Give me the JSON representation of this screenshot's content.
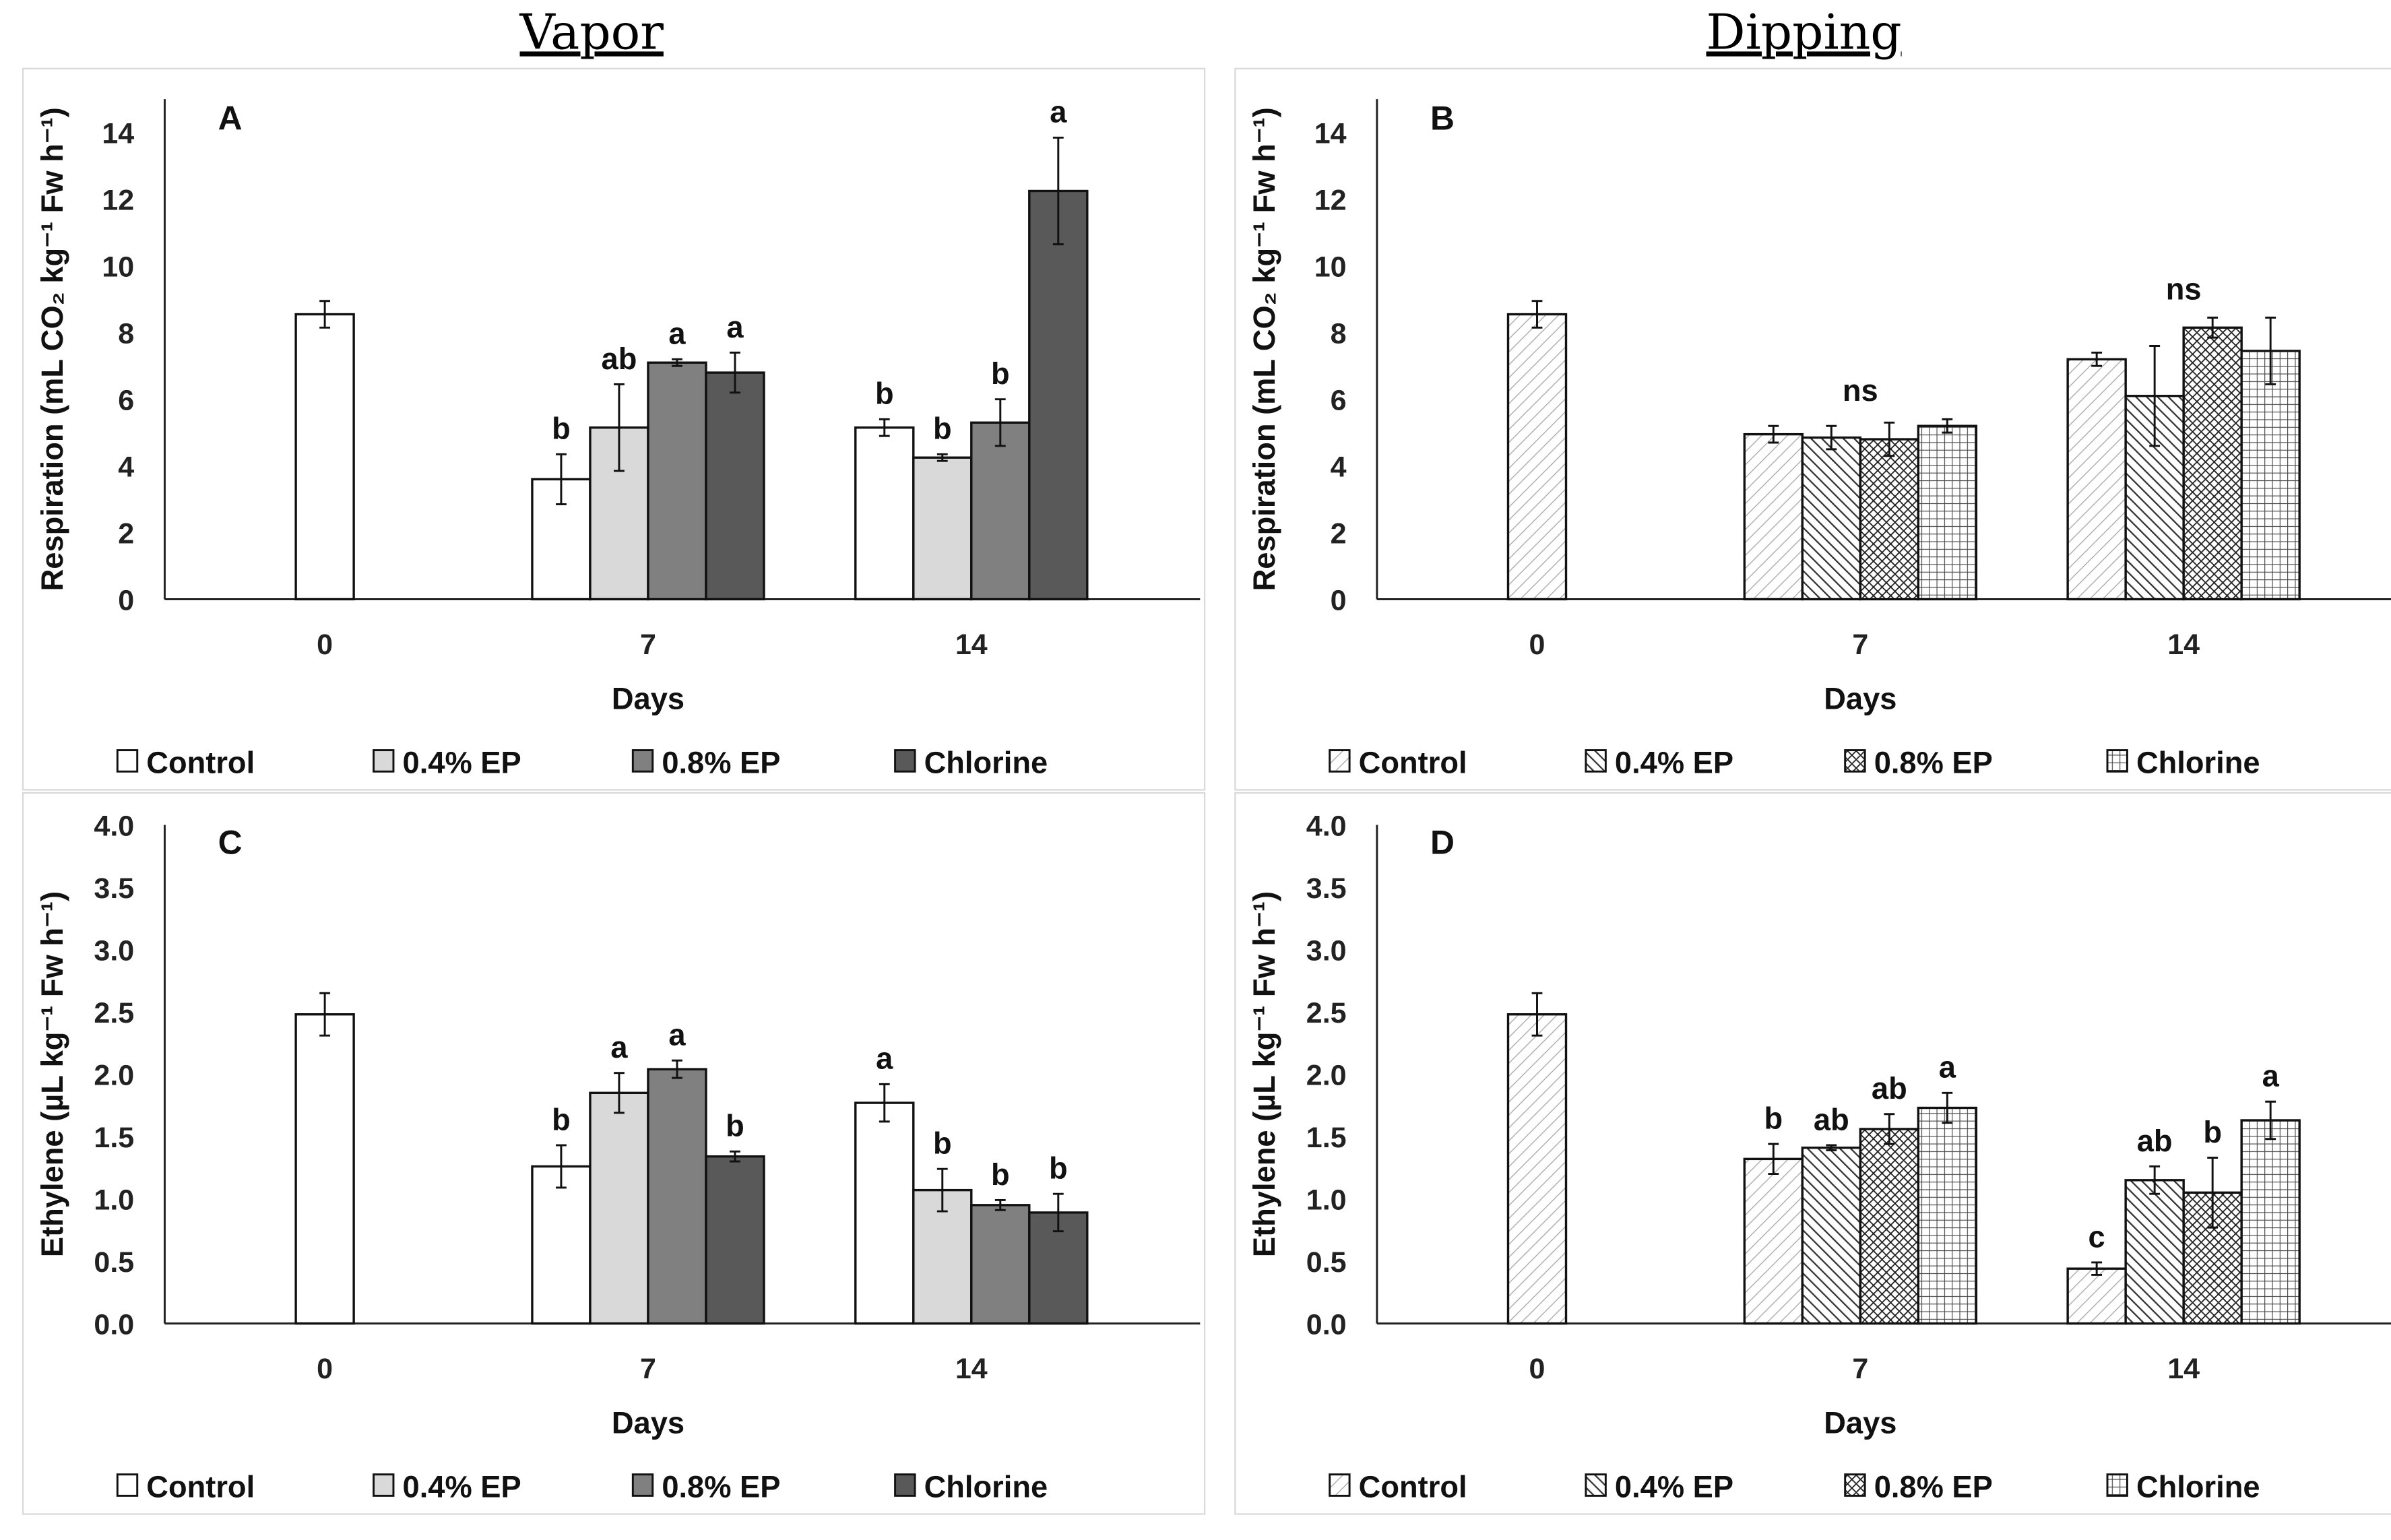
{
  "column_titles": [
    "Vapor",
    "Dipping"
  ],
  "legend": [
    "Control",
    "0.4% EP",
    "0.8% EP",
    "Chlorine"
  ],
  "colors": {
    "control": "#ffffff",
    "ep04": "#d9d9d9",
    "ep08": "#808080",
    "chlorine": "#595959"
  },
  "chart_data": [
    {
      "panel": "A",
      "type": "bar",
      "style": "vapor",
      "xlabel": "Days",
      "ylabel": "Respiration (mL CO₂ kg⁻¹ Fw h⁻¹)",
      "categories": [
        "0",
        "7",
        "14"
      ],
      "ylim": [
        0,
        14
      ],
      "yticks": [
        "0",
        "2",
        "4",
        "6",
        "8",
        "10",
        "12",
        "14"
      ],
      "ystep": 2,
      "series": [
        {
          "name": "Control",
          "values": [
            8.55,
            3.6,
            5.15
          ],
          "errors": [
            0.4,
            0.75,
            0.25
          ],
          "letters": [
            "",
            "b",
            "b"
          ]
        },
        {
          "name": "0.4% EP",
          "values": [
            null,
            5.15,
            4.25
          ],
          "errors": [
            null,
            1.3,
            0.1
          ],
          "letters": [
            "",
            "ab",
            "b"
          ]
        },
        {
          "name": "0.8% EP",
          "values": [
            null,
            7.1,
            5.3
          ],
          "errors": [
            null,
            0.1,
            0.7
          ],
          "letters": [
            "",
            "a",
            "b"
          ]
        },
        {
          "name": "Chlorine",
          "values": [
            null,
            6.8,
            12.25
          ],
          "errors": [
            null,
            0.6,
            1.6
          ],
          "letters": [
            "",
            "a",
            "a"
          ]
        }
      ],
      "group_labels": [
        "",
        "",
        ""
      ]
    },
    {
      "panel": "B",
      "type": "bar",
      "style": "dipping",
      "xlabel": "Days",
      "ylabel": "Respiration (mL CO₂ kg⁻¹ Fw h⁻¹)",
      "categories": [
        "0",
        "7",
        "14"
      ],
      "ylim": [
        0,
        14
      ],
      "yticks": [
        "0",
        "2",
        "4",
        "6",
        "8",
        "10",
        "12",
        "14"
      ],
      "ystep": 2,
      "series": [
        {
          "name": "Control",
          "values": [
            8.55,
            4.95,
            7.2
          ],
          "errors": [
            0.4,
            0.25,
            0.2
          ],
          "letters": [
            "",
            "",
            ""
          ]
        },
        {
          "name": "0.4% EP",
          "values": [
            null,
            4.85,
            6.1
          ],
          "errors": [
            null,
            0.35,
            1.5
          ],
          "letters": [
            "",
            "",
            ""
          ]
        },
        {
          "name": "0.8% EP",
          "values": [
            null,
            4.8,
            8.15
          ],
          "errors": [
            null,
            0.5,
            0.3
          ],
          "letters": [
            "",
            "",
            ""
          ]
        },
        {
          "name": "Chlorine",
          "values": [
            null,
            5.2,
            7.45
          ],
          "errors": [
            null,
            0.2,
            1.0
          ],
          "letters": [
            "",
            "",
            ""
          ]
        }
      ],
      "group_labels": [
        "",
        "ns",
        "ns"
      ]
    },
    {
      "panel": "C",
      "type": "bar",
      "style": "vapor",
      "xlabel": "Days",
      "ylabel": "Ethylene (µL kg⁻¹ Fw h⁻¹)",
      "categories": [
        "0",
        "7",
        "14"
      ],
      "ylim": [
        0,
        4
      ],
      "yticks": [
        "0.0",
        "0.5",
        "1.0",
        "1.5",
        "2.0",
        "2.5",
        "3.0",
        "3.5",
        "4.0"
      ],
      "ystep": 0.5,
      "series": [
        {
          "name": "Control",
          "values": [
            2.48,
            1.26,
            1.77
          ],
          "errors": [
            0.17,
            0.17,
            0.15
          ],
          "letters": [
            "",
            "b",
            "a"
          ]
        },
        {
          "name": "0.4% EP",
          "values": [
            null,
            1.85,
            1.07
          ],
          "errors": [
            null,
            0.16,
            0.17
          ],
          "letters": [
            "",
            "a",
            "b"
          ]
        },
        {
          "name": "0.8% EP",
          "values": [
            null,
            2.04,
            0.95
          ],
          "errors": [
            null,
            0.07,
            0.04
          ],
          "letters": [
            "",
            "a",
            "b"
          ]
        },
        {
          "name": "Chlorine",
          "values": [
            null,
            1.34,
            0.89
          ],
          "errors": [
            null,
            0.04,
            0.15
          ],
          "letters": [
            "",
            "b",
            "b"
          ]
        }
      ],
      "group_labels": [
        "",
        "",
        ""
      ]
    },
    {
      "panel": "D",
      "type": "bar",
      "style": "dipping",
      "xlabel": "Days",
      "ylabel": "Ethylene (µL kg⁻¹ Fw h⁻¹)",
      "categories": [
        "0",
        "7",
        "14"
      ],
      "ylim": [
        0,
        4
      ],
      "yticks": [
        "0.0",
        "0.5",
        "1.0",
        "1.5",
        "2.0",
        "2.5",
        "3.0",
        "3.5",
        "4.0"
      ],
      "ystep": 0.5,
      "series": [
        {
          "name": "Control",
          "values": [
            2.48,
            1.32,
            0.44
          ],
          "errors": [
            0.17,
            0.12,
            0.05
          ],
          "letters": [
            "",
            "b",
            "c"
          ]
        },
        {
          "name": "0.4% EP",
          "values": [
            null,
            1.41,
            1.15
          ],
          "errors": [
            null,
            0.02,
            0.11
          ],
          "letters": [
            "",
            "ab",
            "ab"
          ]
        },
        {
          "name": "0.8% EP",
          "values": [
            null,
            1.56,
            1.05
          ],
          "errors": [
            null,
            0.12,
            0.28
          ],
          "letters": [
            "",
            "ab",
            "b"
          ]
        },
        {
          "name": "Chlorine",
          "values": [
            null,
            1.73,
            1.63
          ],
          "errors": [
            null,
            0.12,
            0.15
          ],
          "letters": [
            "",
            "a",
            "a"
          ]
        }
      ],
      "group_labels": [
        "",
        "",
        ""
      ]
    }
  ]
}
